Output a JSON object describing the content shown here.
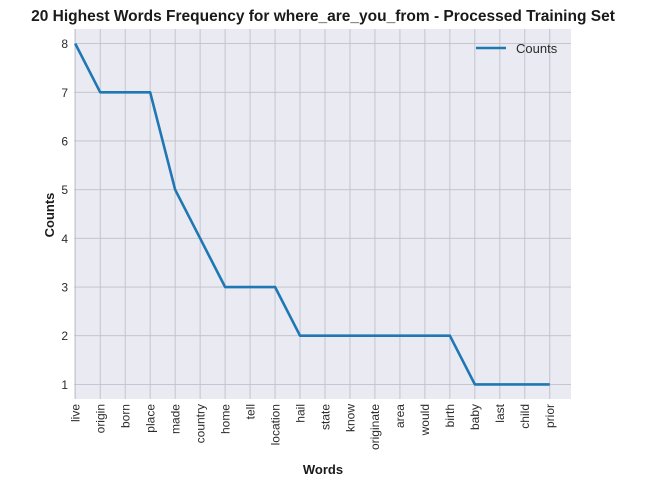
{
  "chart_data": {
    "type": "line",
    "title": "20 Highest Words Frequency for where_are_you_from - Processed Training Set",
    "xlabel": "Words",
    "ylabel": "Counts",
    "categories": [
      "live",
      "origin",
      "born",
      "place",
      "made",
      "country",
      "home",
      "tell",
      "location",
      "hail",
      "state",
      "know",
      "originate",
      "area",
      "would",
      "birth",
      "baby",
      "last",
      "child",
      "prior"
    ],
    "series": [
      {
        "name": "Counts",
        "values": [
          8,
          7,
          7,
          7,
          5,
          4,
          3,
          3,
          3,
          2,
          2,
          2,
          2,
          2,
          2,
          2,
          1,
          1,
          1,
          1
        ],
        "color": "#1f77b4"
      }
    ],
    "ylim": [
      0.7,
      8.3
    ],
    "yticks": [
      1,
      2,
      3,
      4,
      5,
      6,
      7,
      8
    ],
    "grid": true,
    "legend_position": "top-right",
    "background_color": "#eaeaf2",
    "grid_color": "#c0c0c8"
  }
}
